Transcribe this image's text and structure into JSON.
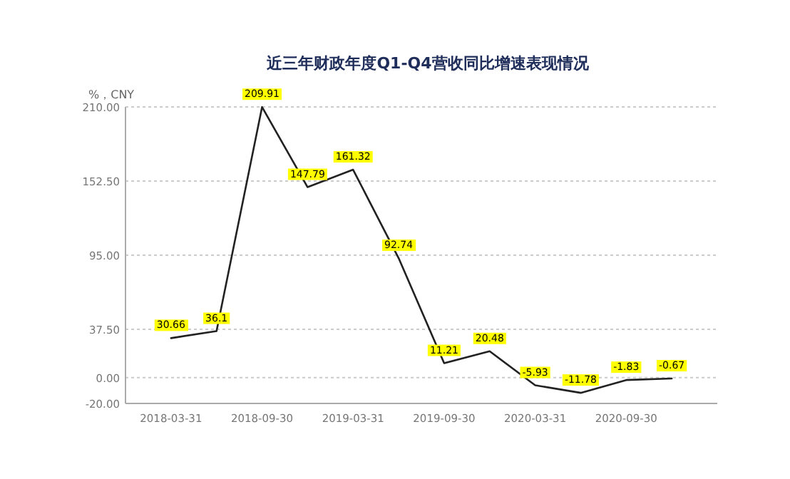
{
  "chart_data": {
    "type": "line",
    "title": "近三年财政年度Q1-Q4营收同比增速表现情况",
    "ylabel": "%，CNY",
    "categories": [
      "2018-03-31",
      null,
      "2018-09-30",
      null,
      "2019-03-31",
      null,
      "2019-09-30",
      null,
      "2020-03-31",
      null,
      "2020-09-30",
      null
    ],
    "series": [
      {
        "color": "#222222",
        "values": [
          30.66,
          36.1,
          209.91,
          147.79,
          161.32,
          92.74,
          11.21,
          20.48,
          -5.93,
          -11.78,
          -1.83,
          -0.67
        ]
      }
    ],
    "ylim": [
      -20,
      210
    ],
    "yticks": [
      {
        "value": -20,
        "label": "-20.00"
      },
      {
        "value": 0,
        "label": "0.00"
      },
      {
        "value": 37.5,
        "label": "37.50"
      },
      {
        "value": 95,
        "label": "95.00"
      },
      {
        "value": 152.5,
        "label": "152.50"
      },
      {
        "value": 210,
        "label": "210.00"
      }
    ],
    "grid": "y",
    "data_labels": true,
    "marker": "none",
    "line_style": "solid"
  }
}
